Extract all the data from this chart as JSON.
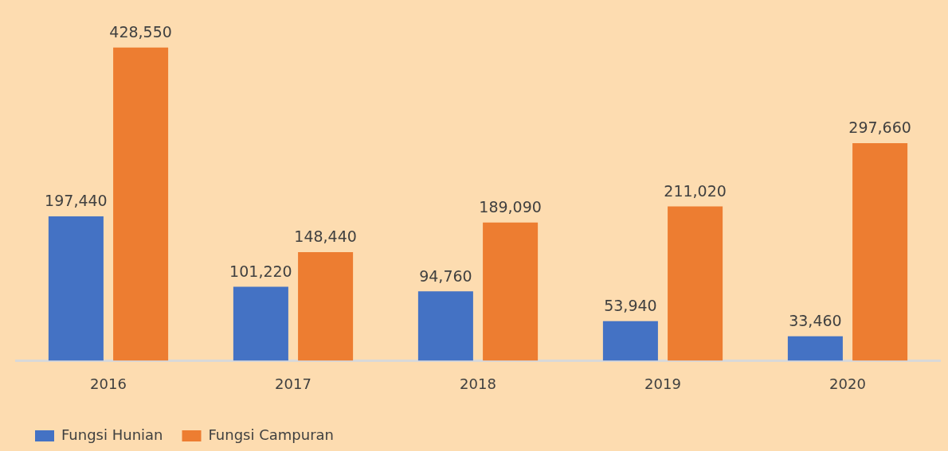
{
  "chart_data": {
    "type": "bar",
    "categories": [
      "2016",
      "2017",
      "2018",
      "2019",
      "2020"
    ],
    "series": [
      {
        "name": "Fungsi Hunian",
        "color": "#4472c4",
        "values": [
          197440,
          101220,
          94760,
          53940,
          33460
        ],
        "value_labels": [
          "197,440",
          "101,220",
          "94,760",
          "53,940",
          "33,460"
        ]
      },
      {
        "name": "Fungsi Campuran",
        "color": "#ed7d31",
        "values": [
          428550,
          148440,
          189090,
          211020,
          297660
        ],
        "value_labels": [
          "428,550",
          "148,440",
          "189,090",
          "211,020",
          "297,660"
        ]
      }
    ],
    "legend": "bottom left",
    "grid": false
  }
}
